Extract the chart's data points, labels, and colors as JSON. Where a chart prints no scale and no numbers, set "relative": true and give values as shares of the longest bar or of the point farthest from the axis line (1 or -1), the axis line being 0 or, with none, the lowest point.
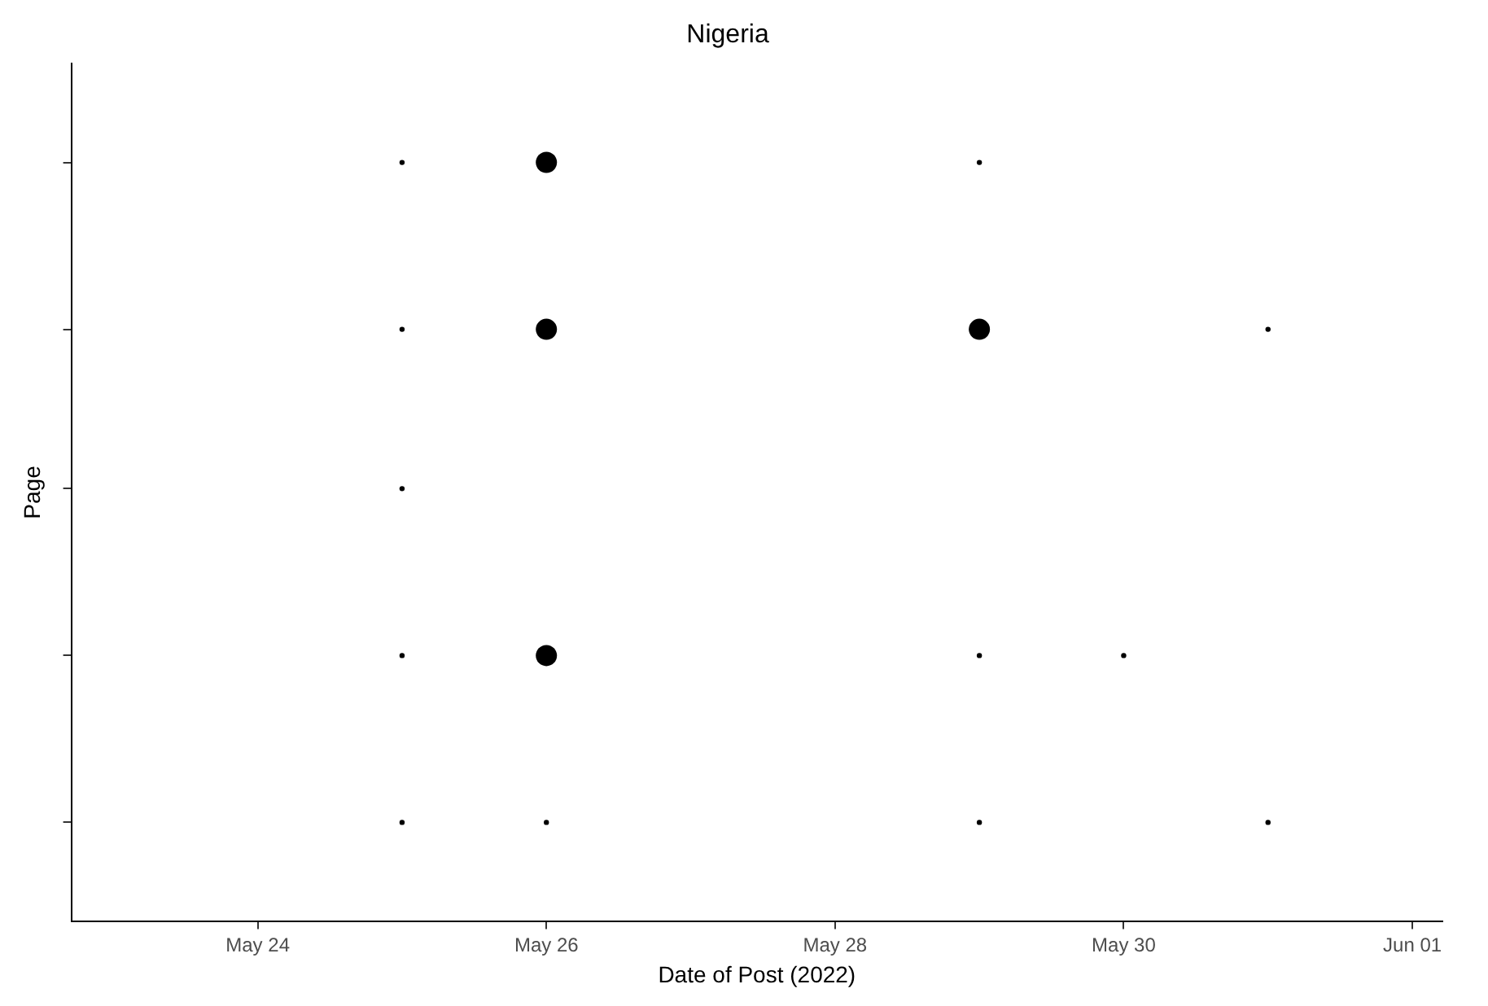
{
  "chart_data": {
    "type": "bubble",
    "title": "Nigeria",
    "xlabel": "Date of Post (2022)",
    "ylabel": "Page",
    "x": [
      "2022-05-25",
      "2022-05-26",
      "2022-05-29",
      "2022-05-25",
      "2022-05-26",
      "2022-05-29",
      "2022-05-31",
      "2022-05-25",
      "2022-05-25",
      "2022-05-26",
      "2022-05-29",
      "2022-05-30",
      "2022-05-25",
      "2022-05-26",
      "2022-05-29",
      "2022-05-31"
    ],
    "values": [
      1,
      1,
      1,
      0.78,
      0.78,
      0.78,
      0.78,
      0.57,
      0.35,
      0.35,
      0.35,
      0.35,
      0.13,
      0.13,
      0.13,
      0.13
    ],
    "sizes": [
      0.06,
      1,
      0.06,
      0.06,
      1,
      1,
      0.06,
      0.06,
      0.06,
      1,
      0.06,
      0.06,
      0.06,
      0.06,
      0.06,
      0.06
    ],
    "relative": true,
    "color": "#000000",
    "xlim": [
      "2022-05-22T17:00",
      "2022-06-01T05:00"
    ],
    "xticks": [
      {
        "value": "2022-05-24",
        "label": "May 24"
      },
      {
        "value": "2022-05-26",
        "label": "May 26"
      },
      {
        "value": "2022-05-28",
        "label": "May 28"
      },
      {
        "value": "2022-05-30",
        "label": "May 30"
      },
      {
        "value": "2022-06-01",
        "label": "Jun 01"
      }
    ],
    "tick_labels": "x",
    "grid": false,
    "legend": false
  }
}
